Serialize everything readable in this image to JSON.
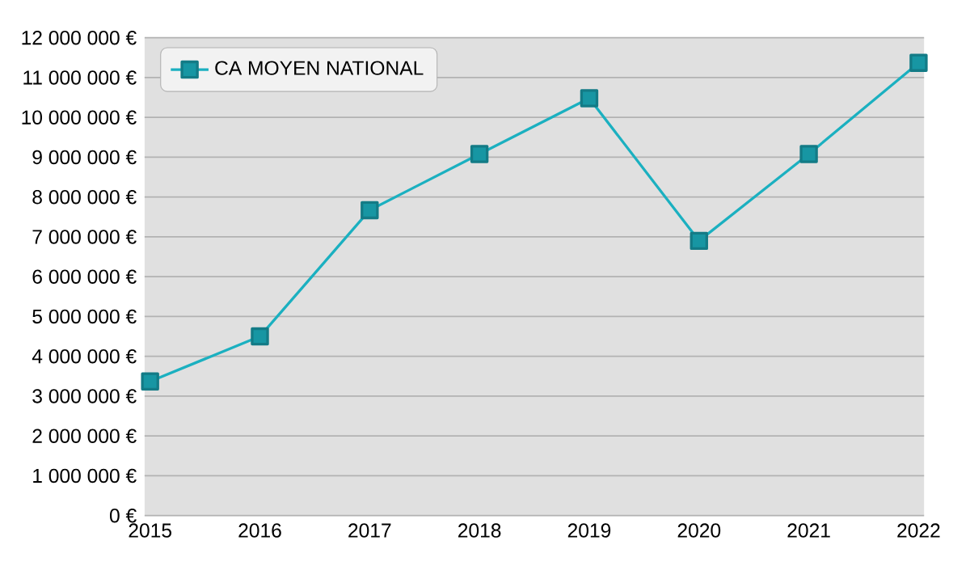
{
  "chart_data": {
    "type": "line",
    "categories": [
      "2015",
      "2016",
      "2017",
      "2018",
      "2019",
      "2020",
      "2021",
      "2022"
    ],
    "series": [
      {
        "name": "CA MOYEN NATIONAL",
        "color": "#1bb0c0",
        "values": [
          3370000,
          4500000,
          7670000,
          9080000,
          10480000,
          6900000,
          9080000,
          11370000
        ]
      }
    ],
    "ylim": [
      0,
      12000000
    ],
    "yticks": [
      {
        "value": 0,
        "label": "0 €"
      },
      {
        "value": 1000000,
        "label": "1 000 000 €"
      },
      {
        "value": 2000000,
        "label": "2 000 000 €"
      },
      {
        "value": 3000000,
        "label": "3 000 000 €"
      },
      {
        "value": 4000000,
        "label": "4 000 000 €"
      },
      {
        "value": 5000000,
        "label": "5 000 000 €"
      },
      {
        "value": 6000000,
        "label": "6 000 000 €"
      },
      {
        "value": 7000000,
        "label": "7 000 000 €"
      },
      {
        "value": 8000000,
        "label": "8 000 000 €"
      },
      {
        "value": 9000000,
        "label": "9 000 000 €"
      },
      {
        "value": 10000000,
        "label": "10 000 000 €"
      },
      {
        "value": 11000000,
        "label": "11 000 000 €"
      },
      {
        "value": 12000000,
        "label": "12 000 000 €"
      }
    ],
    "grid": "y",
    "legend": "top left",
    "marker": "square",
    "line_style": "solid"
  }
}
